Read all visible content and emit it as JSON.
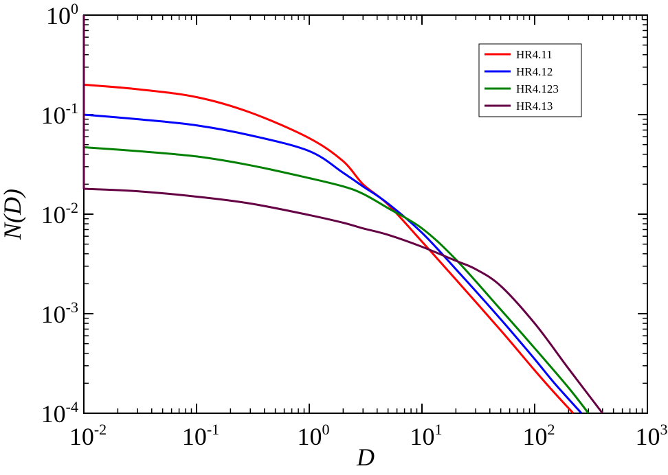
{
  "chart_data": {
    "type": "line",
    "title": "",
    "xlabel": "D",
    "ylabel": "N(D)",
    "x_scale": "log",
    "y_scale": "log",
    "xlim": [
      0.01,
      1000
    ],
    "ylim": [
      0.0001,
      1
    ],
    "grid": false,
    "legend_position": "top-right",
    "x_ticks": [
      {
        "base": "10",
        "exp": "-2",
        "value": 0.01
      },
      {
        "base": "10",
        "exp": "-1",
        "value": 0.1
      },
      {
        "base": "10",
        "exp": "0",
        "value": 1
      },
      {
        "base": "10",
        "exp": "1",
        "value": 10
      },
      {
        "base": "10",
        "exp": "2",
        "value": 100
      },
      {
        "base": "10",
        "exp": "3",
        "value": 1000
      }
    ],
    "y_ticks": [
      {
        "base": "10",
        "exp": "-4",
        "value": 0.0001
      },
      {
        "base": "10",
        "exp": "-3",
        "value": 0.001
      },
      {
        "base": "10",
        "exp": "-2",
        "value": 0.01
      },
      {
        "base": "10",
        "exp": "-1",
        "value": 0.1
      },
      {
        "base": "10",
        "exp": "0",
        "value": 1
      }
    ],
    "series": [
      {
        "name": "HR4.11",
        "color": "#ff0000",
        "x": [
          0.01,
          0.03,
          0.1,
          0.3,
          1,
          2,
          3,
          5,
          10,
          20,
          50,
          100,
          150,
          220
        ],
        "y": [
          0.2,
          0.18,
          0.15,
          0.105,
          0.058,
          0.034,
          0.02,
          0.0125,
          0.0053,
          0.0022,
          0.00068,
          0.00027,
          0.00016,
          0.0001
        ]
      },
      {
        "name": "HR4.12",
        "color": "#0000ff",
        "x": [
          0.01,
          0.03,
          0.1,
          0.3,
          1,
          2,
          3,
          5,
          10,
          20,
          50,
          100,
          150,
          260
        ],
        "y": [
          0.1,
          0.09,
          0.078,
          0.062,
          0.043,
          0.026,
          0.019,
          0.0128,
          0.0065,
          0.0028,
          0.00088,
          0.00035,
          0.0002,
          0.0001
        ]
      },
      {
        "name": "HR4.123",
        "color": "#008000",
        "x": [
          0.01,
          0.03,
          0.1,
          0.3,
          1,
          2,
          3,
          5,
          10,
          20,
          50,
          100,
          200,
          300
        ],
        "y": [
          0.047,
          0.043,
          0.038,
          0.031,
          0.023,
          0.019,
          0.016,
          0.0115,
          0.0072,
          0.0035,
          0.0011,
          0.00045,
          0.00018,
          0.0001
        ]
      },
      {
        "name": "HR4.13",
        "color": "#660044",
        "x": [
          0.01,
          0.03,
          0.1,
          0.3,
          1,
          2,
          3,
          5,
          10,
          20,
          30,
          50,
          100,
          200,
          400
        ],
        "y": [
          0.018,
          0.017,
          0.015,
          0.0128,
          0.0098,
          0.0082,
          0.0072,
          0.0062,
          0.0047,
          0.0034,
          0.0028,
          0.0019,
          0.0008,
          0.00028,
          0.0001
        ]
      }
    ],
    "spike": {
      "x": 0.01,
      "y_from": 0.018,
      "y_to": 1
    }
  }
}
